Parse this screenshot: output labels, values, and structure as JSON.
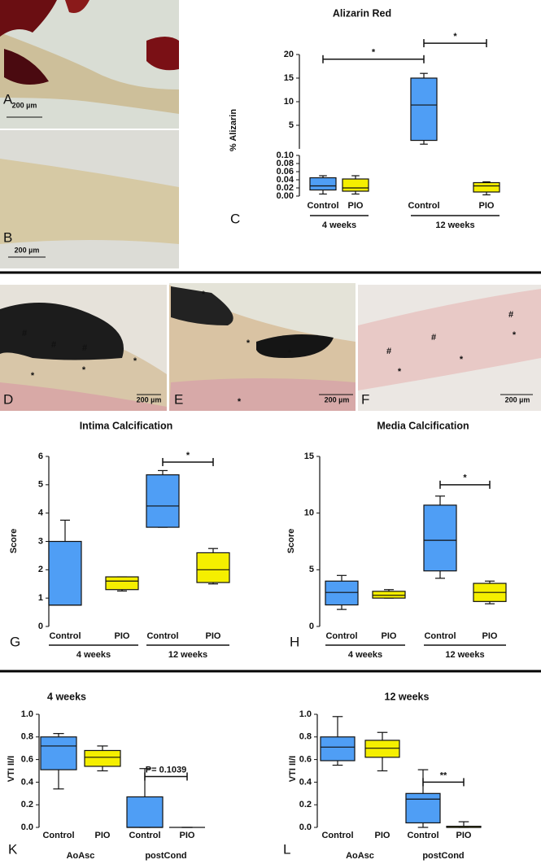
{
  "images": [
    {
      "label": "A",
      "scale": "200 µm"
    },
    {
      "label": "B",
      "scale": "200 µm"
    },
    {
      "label": "D",
      "scale": "200 µm",
      "symbols": [
        "#",
        "#",
        "#",
        "*",
        "*",
        "*"
      ]
    },
    {
      "label": "E",
      "scale": "200 µm",
      "symbols": [
        "*",
        "*",
        "*",
        "*"
      ]
    },
    {
      "label": "F",
      "scale": "200 µm",
      "symbols": [
        "#",
        "#",
        "#",
        "*",
        "*",
        "*"
      ]
    }
  ],
  "chart_data": [
    {
      "type": "box",
      "panel": "C",
      "title": "Alizarin Red",
      "ylabel": "% Alizarin",
      "categories": [
        "Control",
        "PIO",
        "Control",
        "PIO"
      ],
      "groups": [
        "4 weeks",
        "12 weeks"
      ],
      "group_lines": true,
      "ylim": [
        0,
        0.1
      ],
      "yticks": [
        {
          "value": 0,
          "label": "0.00"
        },
        {
          "value": 0.02,
          "label": "0.02"
        },
        {
          "value": 0.04,
          "label": "0.04"
        },
        {
          "value": 0.06,
          "label": "0.06"
        },
        {
          "value": 0.08,
          "label": "0.08"
        },
        {
          "value": 0.1,
          "label": "0.10"
        }
      ],
      "y2lim": [
        0,
        20
      ],
      "y2ticks": [
        5,
        10,
        15,
        20
      ],
      "boxes": [
        {
          "color": "#4f9ef5",
          "min": 0.005,
          "q1": 0.015,
          "median": 0.025,
          "q3": 0.045,
          "max": 0.05
        },
        {
          "color": "#f5ef00",
          "min": 0.005,
          "q1": 0.012,
          "median": 0.02,
          "q3": 0.042,
          "max": 0.05
        },
        {
          "color": "#4f9ef5",
          "axis": "y2",
          "min": 1,
          "q1": 1.8,
          "median": 9.3,
          "q3": 15,
          "max": 16
        },
        {
          "color": "#f5ef00",
          "min": 0.003,
          "q1": 0.01,
          "median": 0.025,
          "q3": 0.033,
          "max": 0.035
        }
      ],
      "annotations": [
        {
          "text": "*",
          "from": 0,
          "to": 2,
          "y": 19,
          "axis": "y2"
        },
        {
          "text": "*",
          "from": 2,
          "to": 3,
          "y": 22.4,
          "axis": "y2"
        }
      ]
    },
    {
      "type": "box",
      "panel": "G",
      "title": "Intima Calcification",
      "ylabel": "Score",
      "categories": [
        "Control",
        "PIO",
        "Control",
        "PIO"
      ],
      "groups": [
        "4 weeks",
        "12 weeks"
      ],
      "group_lines": true,
      "ylim": [
        0,
        6
      ],
      "yticks": [
        0,
        1,
        2,
        3,
        4,
        5,
        6
      ],
      "boxes": [
        {
          "color": "#4f9ef5",
          "min": 0.75,
          "q1": 0.75,
          "median": 0.75,
          "q3": 3,
          "max": 3.75
        },
        {
          "color": "#f5ef00",
          "min": 1.25,
          "q1": 1.3,
          "median": 1.6,
          "q3": 1.75,
          "max": 1.75
        },
        {
          "color": "#4f9ef5",
          "min": 3.5,
          "q1": 3.5,
          "median": 4.25,
          "q3": 5.35,
          "max": 5.5
        },
        {
          "color": "#f5ef00",
          "min": 1.5,
          "q1": 1.55,
          "median": 2,
          "q3": 2.6,
          "max": 2.75
        }
      ],
      "annotations": [
        {
          "text": "*",
          "from": 2,
          "to": 3,
          "y": 5.8
        }
      ]
    },
    {
      "type": "box",
      "panel": "H",
      "title": "Media Calcification",
      "ylabel": "Score",
      "categories": [
        "Control",
        "PIO",
        "Control",
        "PIO"
      ],
      "groups": [
        "4 weeks",
        "12 weeks"
      ],
      "group_lines": true,
      "ylim": [
        0,
        15
      ],
      "yticks": [
        0,
        5,
        10,
        15
      ],
      "boxes": [
        {
          "color": "#4f9ef5",
          "min": 1.5,
          "q1": 1.9,
          "median": 3,
          "q3": 4,
          "max": 4.5
        },
        {
          "color": "#f5ef00",
          "min": 2.5,
          "q1": 2.5,
          "median": 2.75,
          "q3": 3.1,
          "max": 3.25
        },
        {
          "color": "#4f9ef5",
          "min": 4.25,
          "q1": 4.9,
          "median": 7.6,
          "q3": 10.7,
          "max": 11.5
        },
        {
          "color": "#f5ef00",
          "min": 2,
          "q1": 2.2,
          "median": 3,
          "q3": 3.8,
          "max": 4
        }
      ],
      "annotations": [
        {
          "text": "*",
          "from": 2,
          "to": 3,
          "y": 12.5
        }
      ]
    },
    {
      "type": "box",
      "panel": "K",
      "title": "4 weeks",
      "ylabel": "VTI II/I",
      "categories": [
        "Control",
        "PIO",
        "Control",
        "PIO"
      ],
      "groups": [
        "AoAsc",
        "postCond"
      ],
      "group_lines": false,
      "ylim": [
        0,
        1
      ],
      "yticks": [
        {
          "value": 0,
          "label": "0.0"
        },
        {
          "value": 0.2,
          "label": "0.2"
        },
        {
          "value": 0.4,
          "label": "0.4"
        },
        {
          "value": 0.6,
          "label": "0.6"
        },
        {
          "value": 0.8,
          "label": "0.8"
        },
        {
          "value": 1,
          "label": "1.0"
        }
      ],
      "boxes": [
        {
          "color": "#4f9ef5",
          "min": 0.34,
          "q1": 0.51,
          "median": 0.72,
          "q3": 0.8,
          "max": 0.83
        },
        {
          "color": "#f5ef00",
          "min": 0.5,
          "q1": 0.54,
          "median": 0.62,
          "q3": 0.68,
          "max": 0.72
        },
        {
          "color": "#4f9ef5",
          "min": 0,
          "q1": 0,
          "median": 0,
          "q3": 0.27,
          "max": 0.52
        },
        {
          "color": "#f5ef00",
          "min": 0,
          "q1": 0,
          "median": 0,
          "q3": 0,
          "max": 0
        }
      ],
      "annotations": [
        {
          "text": "P= 0.1039",
          "from": 2,
          "to": 3,
          "y": 0.45
        }
      ]
    },
    {
      "type": "box",
      "panel": "L",
      "title": "12 weeks",
      "ylabel": "VTI II/I",
      "categories": [
        "Control",
        "PIO",
        "Control",
        "PIO"
      ],
      "groups": [
        "AoAsc",
        "postCond"
      ],
      "group_lines": false,
      "ylim": [
        0,
        1
      ],
      "yticks": [
        {
          "value": 0,
          "label": "0.0"
        },
        {
          "value": 0.2,
          "label": "0.2"
        },
        {
          "value": 0.4,
          "label": "0.4"
        },
        {
          "value": 0.6,
          "label": "0.6"
        },
        {
          "value": 0.8,
          "label": "0.8"
        },
        {
          "value": 1,
          "label": "1.0"
        }
      ],
      "boxes": [
        {
          "color": "#4f9ef5",
          "min": 0.55,
          "q1": 0.59,
          "median": 0.71,
          "q3": 0.8,
          "max": 0.98
        },
        {
          "color": "#f5ef00",
          "min": 0.5,
          "q1": 0.62,
          "median": 0.7,
          "q3": 0.77,
          "max": 0.84
        },
        {
          "color": "#4f9ef5",
          "min": 0,
          "q1": 0.04,
          "median": 0.25,
          "q3": 0.3,
          "max": 0.51
        },
        {
          "color": "#f5ef00",
          "min": 0,
          "q1": 0,
          "median": 0,
          "q3": 0.01,
          "max": 0.05
        }
      ],
      "annotations": [
        {
          "text": "**",
          "from": 2,
          "to": 3,
          "y": 0.4
        }
      ]
    }
  ]
}
